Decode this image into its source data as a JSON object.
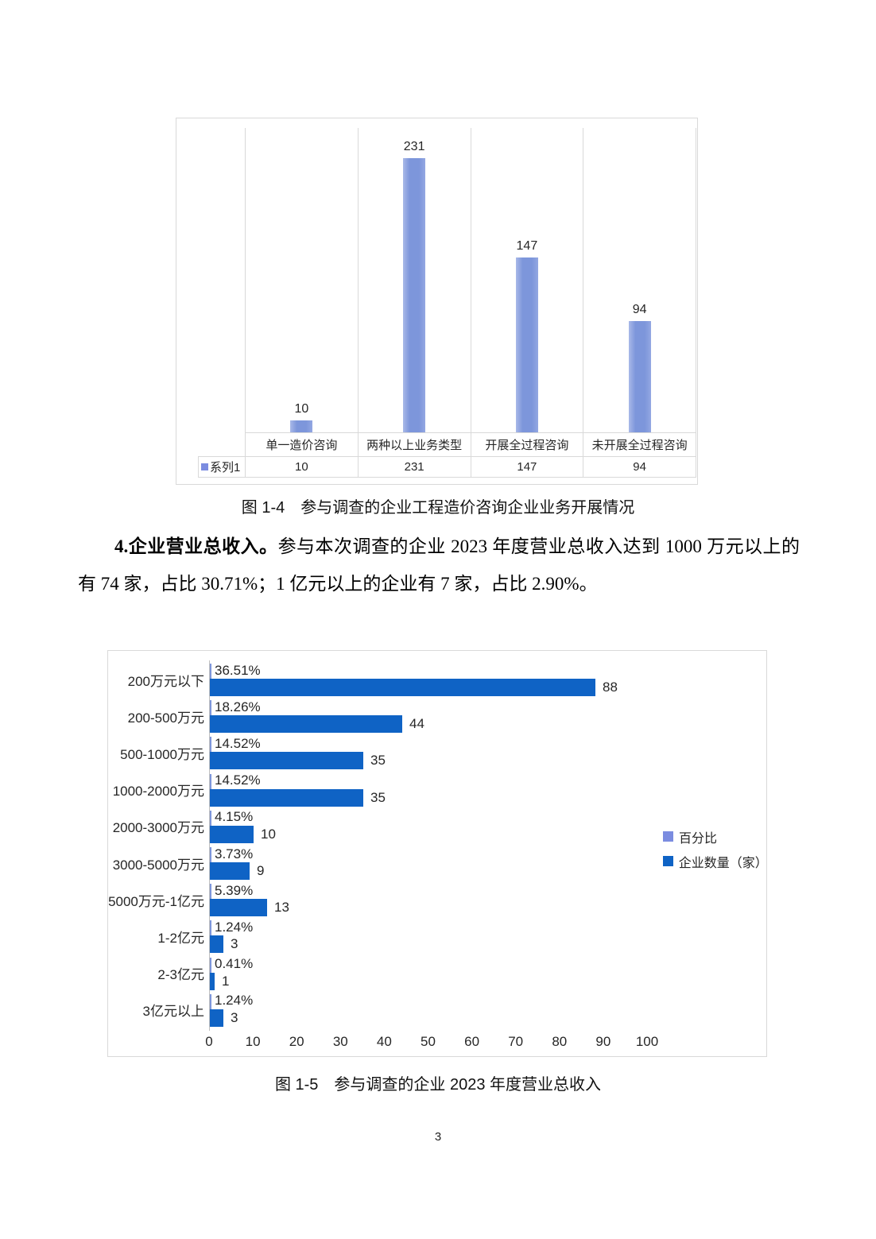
{
  "page": {
    "number": "3",
    "background": "#ffffff"
  },
  "text": {
    "para_lead": "4.企业营业总收入。",
    "para_body": "参与本次调查的企业 2023 年度营业总收入达到 1000 万元以上的有 74 家，占比 30.71%；1 亿元以上的企业有 7 家，占比 2.90%。",
    "caption_fig_1_4": "图 1-4　参与调查的企业工程造价咨询企业业务开展情况",
    "caption_fig_1_5": "图 1-5　参与调查的企业 2023 年度营业总收入"
  },
  "colors": {
    "bar_light": "#7d96db",
    "bar_dark": "#0f63c5",
    "legend_light": "#7b8ce0",
    "border": "#d9d9d9",
    "axis_line": "#bfbfbf"
  },
  "chart_data": [
    {
      "type": "bar",
      "title": "",
      "categories": [
        "单一造价咨询",
        "两种以上业务类型",
        "开展全过程咨询",
        "未开展全过程咨询"
      ],
      "series": [
        {
          "name": "系列1",
          "values": [
            10,
            231,
            147,
            94
          ]
        }
      ],
      "data_labels": [
        "10",
        "231",
        "147",
        "94"
      ],
      "ylim": [
        0,
        250
      ],
      "grid": "vertical category separators only",
      "legend_position": "bottom data table"
    },
    {
      "type": "bar-horizontal",
      "title": "",
      "categories": [
        "200万元以下",
        "200-500万元",
        "500-1000万元",
        "1000-2000万元",
        "2000-3000万元",
        "3000-5000万元",
        "5000万元-1亿元",
        "1-2亿元",
        "2-3亿元",
        "3亿元以上"
      ],
      "series": [
        {
          "name": "百分比",
          "values": [
            0.3651,
            0.1826,
            0.1452,
            0.1452,
            0.0415,
            0.0373,
            0.0539,
            0.0124,
            0.0041,
            0.0124
          ],
          "labels": [
            "36.51%",
            "18.26%",
            "14.52%",
            "14.52%",
            "4.15%",
            "3.73%",
            "5.39%",
            "1.24%",
            "0.41%",
            "1.24%"
          ]
        },
        {
          "name": "企业数量（家）",
          "values": [
            88,
            44,
            35,
            35,
            10,
            9,
            13,
            3,
            1,
            3
          ],
          "labels": [
            "88",
            "44",
            "35",
            "35",
            "10",
            "9",
            "13",
            "3",
            "1",
            "3"
          ]
        }
      ],
      "xlim": [
        0,
        100
      ],
      "xticks": [
        0,
        10,
        20,
        30,
        40,
        50,
        60,
        70,
        80,
        90,
        100
      ],
      "grid": false,
      "legend_position": "middle-right"
    }
  ]
}
